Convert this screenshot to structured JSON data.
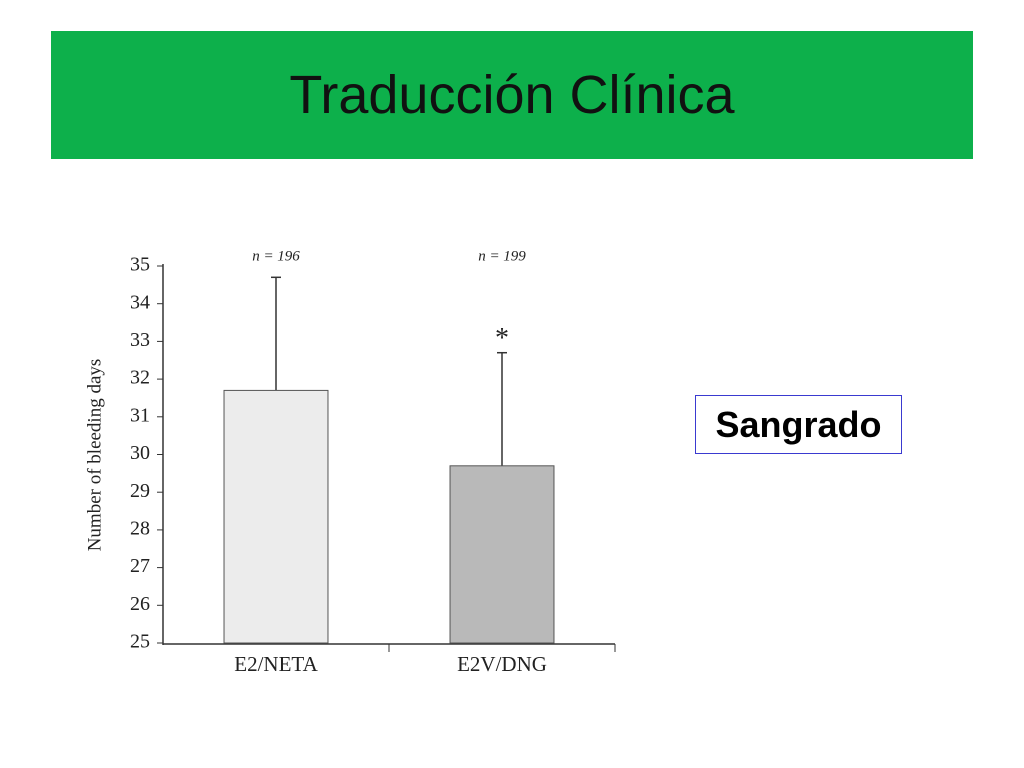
{
  "slide_title": "Traducción Clínica",
  "side_label": "Sangrado",
  "chart_data": {
    "type": "bar",
    "ylabel": "Number of bleeding days",
    "categories": [
      "E2/NETA",
      "E2V/DNG"
    ],
    "values": [
      31.7,
      29.7
    ],
    "errors": [
      3.0,
      3.0
    ],
    "colors": [
      "#ececec",
      "#b9b9b9"
    ],
    "sample_sizes": [
      "n = 196",
      "n = 199"
    ],
    "significance_label": "*",
    "ylim": [
      25,
      35
    ],
    "yticks": [
      25,
      26,
      27,
      28,
      29,
      30,
      31,
      32,
      33,
      34,
      35
    ],
    "grid": false
  }
}
